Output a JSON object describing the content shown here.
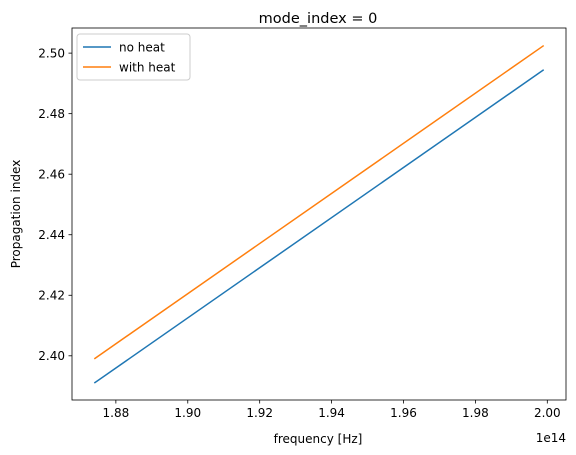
{
  "chart_data": {
    "type": "line",
    "title": "mode_index = 0",
    "xlabel": "frequency [Hz]",
    "ylabel": "Propagation index",
    "x_offset_label": "1e14",
    "x_scale_factor": 100000000000000.0,
    "x": [
      1.874,
      1.999
    ],
    "xlim": [
      1.8678,
      2.0052
    ],
    "ylim": [
      2.3854,
      2.5083
    ],
    "xticks": [
      1.88,
      1.9,
      1.92,
      1.94,
      1.96,
      1.98,
      2.0
    ],
    "xtick_labels": [
      "1.88",
      "1.90",
      "1.92",
      "1.94",
      "1.96",
      "1.98",
      "2.00"
    ],
    "yticks": [
      2.4,
      2.42,
      2.44,
      2.46,
      2.48,
      2.5
    ],
    "ytick_labels": [
      "2.40",
      "2.42",
      "2.44",
      "2.46",
      "2.48",
      "2.50"
    ],
    "series": [
      {
        "name": "no heat",
        "color": "#1f77b4",
        "values": [
          2.391,
          2.4945
        ]
      },
      {
        "name": "with heat",
        "color": "#ff7f0e",
        "values": [
          2.399,
          2.5025
        ]
      }
    ],
    "legend_position": "upper left",
    "grid": false
  }
}
